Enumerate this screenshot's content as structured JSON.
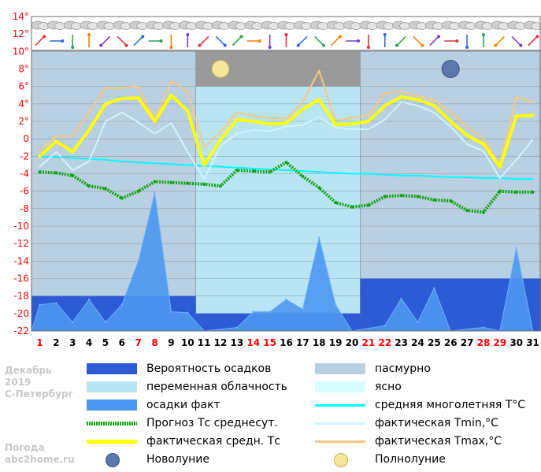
{
  "chart_data": {
    "type": "line",
    "title": "",
    "xlabel": "",
    "ylabel": "",
    "ylim": [
      -22,
      14
    ],
    "x_days": [
      1,
      2,
      3,
      4,
      5,
      6,
      7,
      8,
      9,
      10,
      11,
      12,
      13,
      14,
      15,
      16,
      17,
      18,
      19,
      20,
      21,
      22,
      23,
      24,
      25,
      26,
      27,
      28,
      29,
      30,
      31
    ],
    "y_tick_labels": [
      "14°",
      "12°",
      "10°",
      "8°",
      "6°",
      "4°",
      "2°",
      "0",
      "-2",
      "-4",
      "-6",
      "-8",
      "-10",
      "-12",
      "-14",
      "-16",
      "-18",
      "-20",
      "-22"
    ],
    "weekend_days": [
      1,
      7,
      8,
      14,
      15,
      21,
      22,
      28,
      29
    ],
    "colors": {
      "weekend": "#ff0000",
      "weekday": "#000000",
      "overcast": "#b9cfe2",
      "partly_cloudy": "#b8e4f4",
      "clear": "#d8ffff",
      "precip_prob": "#2d5bd6",
      "precip_fact": "#4c97ef",
      "avg_longterm": "#00ffff",
      "forecast": "#0ea50e",
      "fact_avg": "#ffff00",
      "fact_min": "#d0f4ff",
      "fact_max": "#f9c87e",
      "new_moon": "#5a78ae",
      "full_moon": "#f4e69c"
    },
    "cloud_bands": [
      {
        "from": 0.5,
        "to": 10.5,
        "level": 10,
        "kind": "overcast"
      },
      {
        "from": 10.5,
        "to": 20.5,
        "level": 6,
        "kind": "partly_cloudy"
      },
      {
        "from": 20.5,
        "to": 31.5,
        "level": 10,
        "kind": "overcast"
      }
    ],
    "precipitation_probability": [
      {
        "from": 0.5,
        "to": 10.5,
        "value": -18
      },
      {
        "from": 10.5,
        "to": 20.5,
        "value": -20
      },
      {
        "from": 20.5,
        "to": 31.5,
        "value": -16
      }
    ],
    "series": [
      {
        "name": "средняя многолетняя T°C",
        "key": "avg_longterm",
        "values": [
          -2.0,
          -2.1,
          -2.2,
          -2.3,
          -2.4,
          -2.6,
          -2.7,
          -2.8,
          -2.9,
          -3.0,
          -3.1,
          -3.2,
          -3.3,
          -3.4,
          -3.5,
          -3.6,
          -3.7,
          -3.8,
          -3.9,
          -4.0,
          -4.0,
          -4.1,
          -4.2,
          -4.2,
          -4.3,
          -4.4,
          -4.4,
          -4.5,
          -4.5,
          -4.6,
          -4.6
        ]
      },
      {
        "name": "Прогноз Тс среднесут.",
        "key": "forecast",
        "values": [
          -3.8,
          -3.9,
          -4.2,
          -5.4,
          -5.7,
          -6.8,
          -6.0,
          -4.9,
          -5.0,
          -5.1,
          -5.2,
          -5.4,
          -3.6,
          -3.7,
          -3.8,
          -2.7,
          -4.3,
          -5.6,
          -7.3,
          -7.8,
          -7.6,
          -6.6,
          -6.5,
          -6.6,
          -7.0,
          -7.1,
          -8.2,
          -8.4,
          -6.0,
          -6.1,
          -6.1
        ]
      },
      {
        "name": "фактическая Tmax,°C",
        "key": "fact_max",
        "values": [
          -1.3,
          0.3,
          0.3,
          3.0,
          5.8,
          5.8,
          6.0,
          2.2,
          6.6,
          5.4,
          -1.0,
          0.8,
          3.0,
          2.6,
          2.4,
          2.3,
          4.2,
          7.8,
          2.1,
          2.4,
          2.7,
          5.2,
          5.4,
          4.9,
          4.4,
          3.0,
          1.4,
          0.0,
          -3.0,
          4.8,
          4.2
        ]
      },
      {
        "name": "фактическая Tmin,°C",
        "key": "fact_min",
        "values": [
          -3.2,
          -1.5,
          -3.6,
          -2.6,
          2.0,
          3.0,
          1.9,
          0.6,
          1.8,
          -1.5,
          -4.6,
          -0.8,
          0.6,
          1.0,
          0.9,
          1.4,
          1.6,
          2.5,
          1.3,
          1.1,
          1.1,
          2.2,
          4.2,
          3.8,
          3.0,
          1.4,
          -0.6,
          -1.4,
          -4.5,
          -2.4,
          -0.1
        ]
      },
      {
        "name": "фактическая средн. Тс",
        "key": "fact_avg",
        "values": [
          -2.0,
          -0.3,
          -1.5,
          1.0,
          4.0,
          4.6,
          4.7,
          2.0,
          5.0,
          3.2,
          -3.0,
          -0.1,
          2.2,
          2.0,
          1.7,
          1.8,
          3.4,
          4.5,
          1.6,
          1.7,
          2.0,
          3.8,
          4.8,
          4.5,
          3.8,
          2.0,
          0.4,
          -0.6,
          -3.2,
          2.6,
          2.7
        ]
      }
    ],
    "precip_fact_peaks": [
      {
        "day": 0.5,
        "value": -22
      },
      {
        "day": 1,
        "value": -19
      },
      {
        "day": 2,
        "value": -18.8
      },
      {
        "day": 3,
        "value": -21
      },
      {
        "day": 4,
        "value": -18.4
      },
      {
        "day": 5,
        "value": -21
      },
      {
        "day": 6,
        "value": -19
      },
      {
        "day": 7,
        "value": -14
      },
      {
        "day": 8,
        "value": -6.2
      },
      {
        "day": 9,
        "value": -19.8
      },
      {
        "day": 10,
        "value": -19.9
      },
      {
        "day": 11,
        "value": -22
      },
      {
        "day": 13,
        "value": -21.6
      },
      {
        "day": 14,
        "value": -19.8
      },
      {
        "day": 15,
        "value": -19.8
      },
      {
        "day": 16,
        "value": -18.4
      },
      {
        "day": 17,
        "value": -19.5
      },
      {
        "day": 18,
        "value": -11.3
      },
      {
        "day": 19,
        "value": -19.0
      },
      {
        "day": 20,
        "value": -22
      },
      {
        "day": 22,
        "value": -21.4
      },
      {
        "day": 23,
        "value": -18.3
      },
      {
        "day": 24,
        "value": -21
      },
      {
        "day": 25,
        "value": -17.1
      },
      {
        "day": 26,
        "value": -22
      },
      {
        "day": 28,
        "value": -21.6
      },
      {
        "day": 29,
        "value": -22
      },
      {
        "day": 30,
        "value": -12.5
      },
      {
        "day": 31,
        "value": -22
      }
    ],
    "moon_phases": [
      {
        "day": 12,
        "phase": "full",
        "level": 8
      },
      {
        "day": 26,
        "phase": "new",
        "level": 8
      }
    ]
  },
  "meta": {
    "month": "Декабрь",
    "year": "2019",
    "city": "С-Петербург",
    "site_line1": "Погода",
    "site_line2": "abc2home.ru"
  },
  "legend": [
    {
      "key": "precip_prob",
      "label": "Вероятность осадков",
      "style": "block"
    },
    {
      "key": "overcast",
      "label": "пасмурно",
      "style": "block"
    },
    {
      "key": "partly_cloudy",
      "label": "переменная облачность",
      "style": "block"
    },
    {
      "key": "clear",
      "label": "ясно",
      "style": "block"
    },
    {
      "key": "precip_fact",
      "label": "осадки факт",
      "style": "block"
    },
    {
      "key": "avg_longterm",
      "label": "средняя многолетняя T°C",
      "style": "line"
    },
    {
      "key": "forecast",
      "label": "Прогноз Тс среднесут.",
      "style": "dotted"
    },
    {
      "key": "fact_min",
      "label": "фактическая Tmin,°C",
      "style": "line"
    },
    {
      "key": "fact_avg",
      "label": "фактическая средн. Тс",
      "style": "thick"
    },
    {
      "key": "fact_max",
      "label": "фактическая Tmax,°C",
      "style": "line"
    },
    {
      "key": "new_moon",
      "label": "Новолуние",
      "style": "moon"
    },
    {
      "key": "full_moon",
      "label": "Полнолуние",
      "style": "moon"
    }
  ]
}
